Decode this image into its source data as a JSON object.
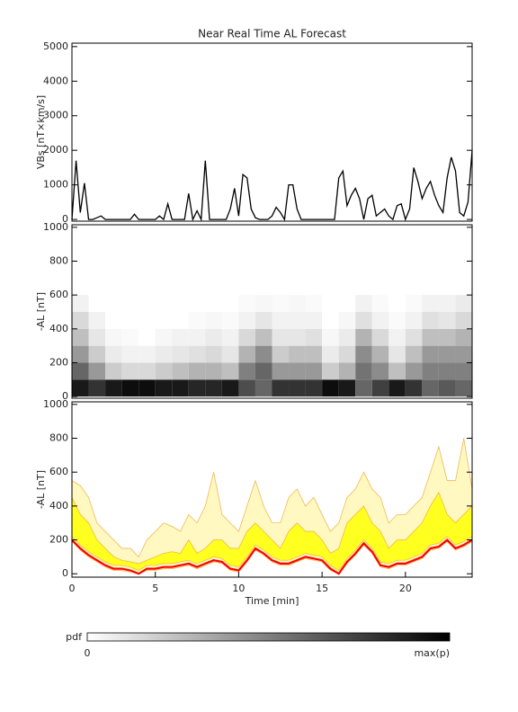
{
  "chart_data": [
    {
      "type": "line",
      "title": "Near Real Time AL Forecast",
      "ylabel": "VBs [nT×km/s]",
      "color": "#000000",
      "x": [
        0,
        0.25,
        0.5,
        0.75,
        1,
        1.25,
        1.5,
        1.75,
        2,
        2.25,
        2.5,
        2.75,
        3,
        3.25,
        3.5,
        3.75,
        4,
        4.25,
        4.5,
        4.75,
        5,
        5.25,
        5.5,
        5.75,
        6,
        6.25,
        6.5,
        6.75,
        7,
        7.25,
        7.5,
        7.75,
        8,
        8.25,
        8.5,
        8.75,
        9,
        9.25,
        9.5,
        9.75,
        10,
        10.25,
        10.5,
        10.75,
        11,
        11.25,
        11.5,
        11.75,
        12,
        12.25,
        12.5,
        12.75,
        13,
        13.25,
        13.5,
        13.75,
        14,
        14.25,
        14.5,
        14.75,
        15,
        15.25,
        15.5,
        15.75,
        16,
        16.25,
        16.5,
        16.75,
        17,
        17.25,
        17.5,
        17.75,
        18,
        18.25,
        18.5,
        18.75,
        19,
        19.25,
        19.5,
        19.75,
        20,
        20.25,
        20.5,
        20.75,
        21,
        21.25,
        21.5,
        21.75,
        22,
        22.25,
        22.5,
        22.75,
        23,
        23.25,
        23.5,
        23.75,
        24
      ],
      "values": [
        0,
        1700,
        200,
        1050,
        0,
        0,
        50,
        100,
        0,
        0,
        0,
        0,
        0,
        0,
        0,
        150,
        0,
        0,
        0,
        0,
        0,
        100,
        0,
        450,
        0,
        0,
        0,
        0,
        750,
        0,
        250,
        0,
        1700,
        0,
        0,
        0,
        0,
        0,
        300,
        900,
        100,
        1300,
        1200,
        300,
        50,
        0,
        0,
        0,
        100,
        350,
        200,
        0,
        1000,
        1000,
        300,
        0,
        0,
        0,
        0,
        0,
        0,
        0,
        0,
        0,
        1200,
        1400,
        400,
        700,
        900,
        600,
        0,
        600,
        700,
        100,
        200,
        300,
        100,
        0,
        400,
        450,
        0,
        300,
        1500,
        1100,
        600,
        900,
        1100,
        700,
        400,
        200,
        1200,
        1800,
        1400,
        200,
        100,
        500,
        2000
      ],
      "xlim": [
        0,
        24
      ],
      "ylim": [
        -50,
        5100
      ],
      "yticks": [
        0,
        1000,
        2000,
        3000,
        4000,
        5000
      ]
    },
    {
      "type": "heatmap",
      "ylabel": "-AL [nT]",
      "x_edges": [
        0,
        1,
        2,
        3,
        4,
        5,
        6,
        7,
        8,
        9,
        10,
        11,
        12,
        13,
        14,
        15,
        16,
        17,
        18,
        19,
        20,
        21,
        22,
        23,
        24
      ],
      "y_edges": [
        0,
        100,
        200,
        300,
        400,
        500,
        600
      ],
      "z": [
        [
          0.9,
          0.6,
          0.4,
          0.25,
          0.15,
          0.05
        ],
        [
          0.8,
          0.4,
          0.2,
          0.1,
          0.05,
          0
        ],
        [
          0.9,
          0.2,
          0.08,
          0.03,
          0,
          0
        ],
        [
          0.95,
          0.15,
          0.05,
          0.02,
          0,
          0
        ],
        [
          0.95,
          0.15,
          0.05,
          0,
          0,
          0
        ],
        [
          0.9,
          0.2,
          0.08,
          0.03,
          0,
          0
        ],
        [
          0.9,
          0.25,
          0.1,
          0.05,
          0,
          0
        ],
        [
          0.85,
          0.3,
          0.12,
          0.05,
          0.02,
          0
        ],
        [
          0.85,
          0.3,
          0.15,
          0.08,
          0.03,
          0
        ],
        [
          0.9,
          0.25,
          0.1,
          0.05,
          0.02,
          0
        ],
        [
          0.7,
          0.5,
          0.3,
          0.15,
          0.05,
          0.02
        ],
        [
          0.6,
          0.6,
          0.45,
          0.25,
          0.1,
          0.03
        ],
        [
          0.8,
          0.4,
          0.2,
          0.1,
          0.05,
          0.02
        ],
        [
          0.8,
          0.4,
          0.25,
          0.1,
          0.05,
          0.03
        ],
        [
          0.8,
          0.4,
          0.25,
          0.12,
          0.05,
          0.02
        ],
        [
          0.95,
          0.2,
          0.08,
          0.03,
          0,
          0
        ],
        [
          0.9,
          0.3,
          0.15,
          0.08,
          0.03,
          0
        ],
        [
          0.6,
          0.55,
          0.45,
          0.3,
          0.12,
          0.05
        ],
        [
          0.75,
          0.45,
          0.3,
          0.15,
          0.05,
          0.02
        ],
        [
          0.9,
          0.25,
          0.1,
          0.05,
          0.02,
          0
        ],
        [
          0.8,
          0.4,
          0.25,
          0.12,
          0.05,
          0.02
        ],
        [
          0.6,
          0.5,
          0.4,
          0.25,
          0.12,
          0.05
        ],
        [
          0.65,
          0.5,
          0.4,
          0.25,
          0.1,
          0.05
        ],
        [
          0.6,
          0.5,
          0.4,
          0.3,
          0.15,
          0.08
        ]
      ],
      "xlim": [
        0,
        24
      ],
      "ylim": [
        -10,
        1015
      ],
      "yticks": [
        0,
        200,
        400,
        600,
        800,
        1000
      ]
    },
    {
      "type": "band",
      "ylabel": "-AL [nT]",
      "xlabel": "Time [min]",
      "x": [
        0,
        0.5,
        1,
        1.5,
        2,
        2.5,
        3,
        3.5,
        4,
        4.5,
        5,
        5.5,
        6,
        6.5,
        7,
        7.5,
        8,
        8.5,
        9,
        9.5,
        10,
        10.5,
        11,
        11.5,
        12,
        12.5,
        13,
        13.5,
        14,
        14.5,
        15,
        15.5,
        16,
        16.5,
        17,
        17.5,
        18,
        18.5,
        19,
        19.5,
        20,
        20.5,
        21,
        21.5,
        22,
        22.5,
        23,
        23.5,
        24
      ],
      "bands": [
        {
          "color": "#fff8c0",
          "edge": "#f0b040",
          "low": [
            190,
            140,
            100,
            70,
            40,
            20,
            20,
            10,
            0,
            20,
            20,
            30,
            30,
            40,
            50,
            30,
            50,
            70,
            60,
            20,
            10,
            70,
            140,
            110,
            70,
            50,
            50,
            70,
            90,
            80,
            70,
            20,
            0,
            60,
            110,
            170,
            120,
            40,
            30,
            50,
            50,
            70,
            90,
            140,
            150,
            190,
            140,
            160,
            190
          ],
          "high": [
            550,
            520,
            450,
            300,
            250,
            200,
            150,
            150,
            100,
            200,
            250,
            300,
            280,
            250,
            350,
            300,
            400,
            600,
            350,
            300,
            250,
            400,
            550,
            400,
            300,
            300,
            450,
            500,
            400,
            450,
            350,
            250,
            300,
            450,
            500,
            600,
            500,
            450,
            300,
            350,
            350,
            400,
            450,
            600,
            750,
            550,
            550,
            800,
            500
          ]
        },
        {
          "color": "#ffff20",
          "edge": "#f0b040",
          "low": [
            220,
            170,
            130,
            100,
            70,
            50,
            50,
            40,
            20,
            50,
            50,
            60,
            60,
            70,
            80,
            60,
            80,
            100,
            90,
            50,
            40,
            100,
            170,
            140,
            100,
            80,
            80,
            100,
            120,
            110,
            100,
            50,
            20,
            90,
            140,
            200,
            150,
            70,
            60,
            80,
            80,
            100,
            120,
            170,
            180,
            220,
            170,
            190,
            220
          ],
          "high": [
            450,
            350,
            300,
            200,
            150,
            100,
            80,
            70,
            60,
            80,
            100,
            120,
            130,
            120,
            200,
            120,
            150,
            200,
            200,
            150,
            150,
            250,
            300,
            250,
            200,
            150,
            250,
            300,
            250,
            250,
            200,
            120,
            150,
            300,
            350,
            400,
            300,
            250,
            150,
            200,
            200,
            250,
            300,
            400,
            480,
            350,
            300,
            350,
            400
          ]
        }
      ],
      "line": {
        "color": "#ff0000",
        "values": [
          200,
          150,
          110,
          80,
          50,
          30,
          30,
          20,
          0,
          30,
          30,
          40,
          40,
          50,
          60,
          40,
          60,
          80,
          70,
          30,
          20,
          80,
          150,
          120,
          80,
          60,
          60,
          80,
          100,
          90,
          80,
          30,
          0,
          70,
          120,
          180,
          130,
          50,
          40,
          60,
          60,
          80,
          100,
          150,
          160,
          200,
          150,
          170,
          200
        ]
      },
      "xlim": [
        0,
        24
      ],
      "ylim": [
        -20,
        1015
      ],
      "yticks": [
        0,
        200,
        400,
        600,
        800,
        1000
      ],
      "xticks": [
        0,
        5,
        10,
        15,
        20
      ]
    }
  ],
  "colorbar": {
    "label": "pdf",
    "min_label": "0",
    "max_label": "max(p)"
  }
}
